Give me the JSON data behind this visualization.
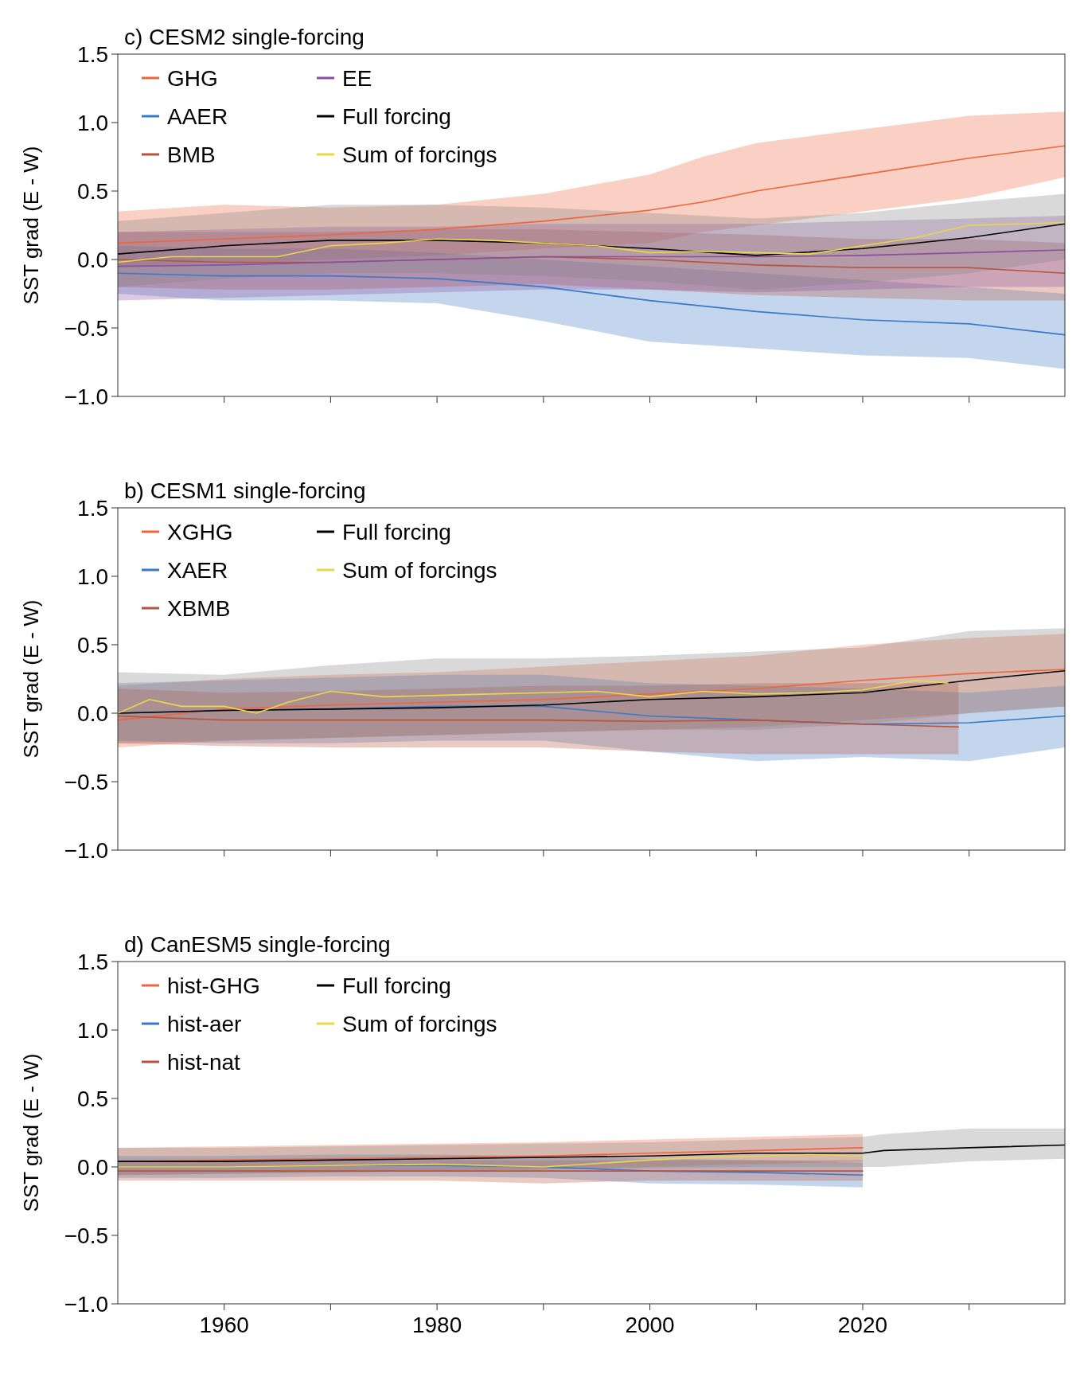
{
  "chart_data": [
    {
      "type": "line",
      "title": "c) CESM2 single-forcing",
      "ylabel": "SST grad (E - W)",
      "xlim": [
        1950,
        2039
      ],
      "ylim": [
        -1,
        1.5
      ],
      "xticks": [
        1960,
        {
          "value": 1970,
          "label": null
        },
        1980,
        {
          "value": 1990,
          "label": null
        },
        2000,
        {
          "value": 2010,
          "label": null
        },
        2020,
        {
          "value": 2030,
          "label": null
        }
      ],
      "yticks": [
        {
          "value": -1,
          "label": "−1.0"
        },
        {
          "value": -0.5,
          "label": "−0.5"
        },
        {
          "value": 0,
          "label": "0.0"
        },
        {
          "value": 0.5,
          "label": "0.5"
        },
        {
          "value": 1,
          "label": "1.0"
        },
        {
          "value": 1.5,
          "label": "1.5"
        }
      ],
      "tick_labels": "y",
      "legend": "top left",
      "series": [
        {
          "name": "GHG",
          "color": "#f0643c",
          "x": [
            1950,
            1960,
            1970,
            1980,
            1990,
            2000,
            2005,
            2010,
            2020,
            2030,
            2039
          ],
          "values": [
            0.12,
            0.15,
            0.18,
            0.22,
            0.28,
            0.36,
            0.42,
            0.5,
            0.62,
            0.74,
            0.83
          ],
          "lower": [
            -0.05,
            -0.02,
            0.0,
            0.03,
            0.08,
            0.12,
            0.2,
            0.25,
            0.35,
            0.45,
            0.6
          ],
          "upper": [
            0.35,
            0.4,
            0.38,
            0.4,
            0.48,
            0.62,
            0.75,
            0.85,
            0.95,
            1.05,
            1.08
          ]
        },
        {
          "name": "AAER",
          "color": "#3a78c8",
          "x": [
            1950,
            1960,
            1970,
            1980,
            1990,
            2000,
            2010,
            2020,
            2030,
            2039
          ],
          "values": [
            -0.1,
            -0.12,
            -0.12,
            -0.14,
            -0.2,
            -0.3,
            -0.38,
            -0.44,
            -0.47,
            -0.55
          ],
          "lower": [
            -0.25,
            -0.3,
            -0.3,
            -0.32,
            -0.45,
            -0.6,
            -0.65,
            -0.7,
            -0.72,
            -0.8
          ],
          "upper": [
            0.1,
            0.08,
            0.08,
            0.05,
            0.0,
            -0.05,
            -0.1,
            -0.15,
            -0.2,
            -0.25
          ]
        },
        {
          "name": "BMB",
          "color": "#b5533c",
          "x": [
            1950,
            1960,
            1970,
            1980,
            1990,
            2000,
            2010,
            2020,
            2030,
            2039
          ],
          "values": [
            0.0,
            -0.02,
            -0.02,
            0.0,
            0.02,
            0.0,
            -0.04,
            -0.06,
            -0.06,
            -0.1
          ],
          "lower": [
            -0.2,
            -0.22,
            -0.22,
            -0.2,
            -0.18,
            -0.22,
            -0.26,
            -0.28,
            -0.3,
            -0.3
          ],
          "upper": [
            0.2,
            0.2,
            0.2,
            0.22,
            0.22,
            0.2,
            0.18,
            0.15,
            0.15,
            0.12
          ]
        },
        {
          "name": "EE",
          "color": "#8a4fa0",
          "x": [
            1950,
            1960,
            1970,
            1980,
            1990,
            2000,
            2010,
            2020,
            2030,
            2039
          ],
          "values": [
            -0.05,
            -0.04,
            -0.02,
            0.0,
            0.02,
            0.02,
            0.02,
            0.03,
            0.05,
            0.07
          ],
          "lower": [
            -0.3,
            -0.28,
            -0.26,
            -0.24,
            -0.22,
            -0.22,
            -0.24,
            -0.22,
            -0.2,
            -0.2
          ],
          "upper": [
            0.2,
            0.22,
            0.24,
            0.24,
            0.26,
            0.26,
            0.26,
            0.28,
            0.3,
            0.32
          ]
        },
        {
          "name": "Full forcing",
          "color": "#000000",
          "x": [
            1950,
            1960,
            1970,
            1980,
            1990,
            2000,
            2010,
            2020,
            2030,
            2039
          ],
          "values": [
            0.04,
            0.1,
            0.14,
            0.14,
            0.12,
            0.08,
            0.03,
            0.08,
            0.16,
            0.26
          ],
          "lower": [
            -0.2,
            -0.14,
            -0.1,
            -0.1,
            -0.12,
            -0.16,
            -0.22,
            -0.17,
            -0.1,
            0.0
          ],
          "upper": [
            0.28,
            0.34,
            0.4,
            0.4,
            0.38,
            0.34,
            0.3,
            0.34,
            0.42,
            0.48
          ]
        },
        {
          "name": "Sum of forcings",
          "color": "#e8d84a",
          "x": [
            1950,
            1955,
            1960,
            1965,
            1970,
            1975,
            1980,
            1985,
            1990,
            1995,
            2000,
            2005,
            2010,
            2015,
            2020,
            2025,
            2030,
            2035,
            2039
          ],
          "values": [
            -0.02,
            0.02,
            0.02,
            0.02,
            0.1,
            0.12,
            0.15,
            0.14,
            0.12,
            0.1,
            0.05,
            0.06,
            0.05,
            0.04,
            0.1,
            0.16,
            0.25,
            0.26,
            0.27
          ]
        }
      ]
    },
    {
      "type": "line",
      "title": "b) CESM1 single-forcing",
      "ylabel": "SST grad (E - W)",
      "xlim": [
        1950,
        2039
      ],
      "ylim": [
        -1,
        1.5
      ],
      "xticks": [
        1960,
        {
          "value": 1970,
          "label": null
        },
        1980,
        {
          "value": 1990,
          "label": null
        },
        2000,
        {
          "value": 2010,
          "label": null
        },
        2020,
        {
          "value": 2030,
          "label": null
        }
      ],
      "yticks": [
        {
          "value": -1,
          "label": "−1.0"
        },
        {
          "value": -0.5,
          "label": "−0.5"
        },
        {
          "value": 0,
          "label": "0.0"
        },
        {
          "value": 0.5,
          "label": "0.5"
        },
        {
          "value": 1,
          "label": "1.0"
        },
        {
          "value": 1.5,
          "label": "1.5"
        }
      ],
      "tick_labels": "y",
      "legend": "top left",
      "series": [
        {
          "name": "XGHG",
          "color": "#f0643c",
          "x": [
            1950,
            1960,
            1970,
            1980,
            1990,
            2000,
            2010,
            2020,
            2030,
            2039
          ],
          "values": [
            -0.05,
            0.03,
            0.06,
            0.08,
            0.1,
            0.14,
            0.18,
            0.24,
            0.29,
            0.32
          ],
          "lower": [
            -0.25,
            -0.2,
            -0.18,
            -0.16,
            -0.14,
            -0.12,
            -0.1,
            -0.05,
            0.0,
            0.05
          ],
          "upper": [
            0.2,
            0.25,
            0.28,
            0.3,
            0.34,
            0.38,
            0.42,
            0.5,
            0.55,
            0.58
          ]
        },
        {
          "name": "XAER",
          "color": "#3a78c8",
          "x": [
            1950,
            1960,
            1970,
            1980,
            1990,
            2000,
            2010,
            2020,
            2030,
            2039
          ],
          "values": [
            0.0,
            0.02,
            0.03,
            0.05,
            0.05,
            -0.02,
            -0.05,
            -0.08,
            -0.07,
            -0.02
          ],
          "lower": [
            -0.2,
            -0.22,
            -0.22,
            -0.2,
            -0.2,
            -0.28,
            -0.35,
            -0.32,
            -0.35,
            -0.25
          ],
          "upper": [
            0.22,
            0.24,
            0.26,
            0.28,
            0.28,
            0.22,
            0.2,
            0.18,
            0.15,
            0.2
          ]
        },
        {
          "name": "XBMB",
          "color": "#b5533c",
          "x": [
            1950,
            1960,
            1970,
            1980,
            1990,
            2000,
            2010,
            2020,
            2029
          ],
          "values": [
            -0.02,
            -0.05,
            -0.05,
            -0.05,
            -0.05,
            -0.06,
            -0.05,
            -0.08,
            -0.1
          ],
          "lower": [
            -0.22,
            -0.24,
            -0.25,
            -0.25,
            -0.25,
            -0.28,
            -0.3,
            -0.3,
            -0.3
          ],
          "upper": [
            0.18,
            0.15,
            0.16,
            0.18,
            0.2,
            0.2,
            0.22,
            0.22,
            0.22
          ]
        },
        {
          "name": "Full forcing",
          "color": "#000000",
          "x": [
            1950,
            1960,
            1970,
            1980,
            1990,
            2000,
            2010,
            2020,
            2030,
            2039
          ],
          "values": [
            0.0,
            0.02,
            0.03,
            0.04,
            0.06,
            0.1,
            0.12,
            0.15,
            0.24,
            0.31
          ],
          "lower": [
            -0.22,
            -0.2,
            -0.18,
            -0.16,
            -0.14,
            -0.12,
            -0.12,
            -0.08,
            0.0,
            0.05
          ],
          "upper": [
            0.3,
            0.28,
            0.35,
            0.4,
            0.4,
            0.42,
            0.45,
            0.48,
            0.6,
            0.62
          ]
        },
        {
          "name": "Sum of forcings",
          "color": "#e8d84a",
          "x": [
            1950,
            1953,
            1956,
            1960,
            1963,
            1966,
            1970,
            1975,
            1980,
            1985,
            1990,
            1995,
            2000,
            2005,
            2010,
            2015,
            2020,
            2025,
            2028
          ],
          "values": [
            0.0,
            0.1,
            0.05,
            0.05,
            0.0,
            0.08,
            0.16,
            0.12,
            0.13,
            0.14,
            0.15,
            0.16,
            0.12,
            0.16,
            0.14,
            0.15,
            0.17,
            0.24,
            0.22
          ]
        }
      ]
    },
    {
      "type": "line",
      "title": "d) CanESM5 single-forcing",
      "ylabel": "SST grad (E - W)",
      "xlim": [
        1950,
        2039
      ],
      "ylim": [
        -1,
        1.5
      ],
      "xticks": [
        1960,
        {
          "value": 1970,
          "label": null
        },
        1980,
        {
          "value": 1990,
          "label": null
        },
        2000,
        {
          "value": 2010,
          "label": null
        },
        2020,
        {
          "value": 2030,
          "label": null
        }
      ],
      "yticks": [
        {
          "value": -1,
          "label": "−1.0"
        },
        {
          "value": -0.5,
          "label": "−0.5"
        },
        {
          "value": 0,
          "label": "0.0"
        },
        {
          "value": 0.5,
          "label": "0.5"
        },
        {
          "value": 1,
          "label": "1.0"
        },
        {
          "value": 1.5,
          "label": "1.5"
        }
      ],
      "legend": "top left",
      "series": [
        {
          "name": "hist-GHG",
          "color": "#f0643c",
          "x": [
            1950,
            1960,
            1970,
            1980,
            1990,
            2000,
            2010,
            2020
          ],
          "values": [
            0.04,
            0.05,
            0.06,
            0.07,
            0.08,
            0.1,
            0.12,
            0.14
          ],
          "lower": [
            -0.06,
            -0.05,
            -0.04,
            -0.03,
            -0.02,
            0.0,
            0.02,
            0.04
          ],
          "upper": [
            0.14,
            0.15,
            0.16,
            0.17,
            0.18,
            0.2,
            0.22,
            0.24
          ]
        },
        {
          "name": "hist-aer",
          "color": "#3a78c8",
          "x": [
            1950,
            1960,
            1970,
            1980,
            1990,
            2000,
            2010,
            2020
          ],
          "values": [
            0.0,
            0.0,
            0.01,
            0.01,
            0.0,
            -0.03,
            -0.04,
            -0.06
          ],
          "lower": [
            -0.08,
            -0.08,
            -0.07,
            -0.07,
            -0.08,
            -0.12,
            -0.13,
            -0.15
          ],
          "upper": [
            0.08,
            0.08,
            0.09,
            0.09,
            0.08,
            0.06,
            0.05,
            0.03
          ]
        },
        {
          "name": "hist-nat",
          "color": "#b5533c",
          "x": [
            1950,
            1960,
            1970,
            1980,
            1990,
            2000,
            2010,
            2020
          ],
          "values": [
            -0.03,
            -0.03,
            -0.03,
            -0.03,
            -0.03,
            -0.03,
            -0.03,
            -0.03
          ],
          "lower": [
            -0.1,
            -0.1,
            -0.1,
            -0.1,
            -0.12,
            -0.1,
            -0.1,
            -0.1
          ],
          "upper": [
            0.05,
            0.05,
            0.05,
            0.05,
            0.05,
            0.05,
            0.05,
            0.05
          ]
        },
        {
          "name": "Full forcing",
          "color": "#000000",
          "x": [
            1950,
            1960,
            1970,
            1980,
            1990,
            2000,
            2010,
            2020,
            2022,
            2030,
            2039
          ],
          "values": [
            0.04,
            0.04,
            0.05,
            0.06,
            0.07,
            0.08,
            0.1,
            0.1,
            0.12,
            0.14,
            0.16
          ],
          "lower": [
            -0.06,
            -0.05,
            -0.04,
            -0.03,
            -0.02,
            -0.01,
            0.0,
            0.0,
            0.0,
            0.04,
            0.06
          ],
          "upper": [
            0.14,
            0.14,
            0.15,
            0.16,
            0.17,
            0.18,
            0.2,
            0.22,
            0.24,
            0.28,
            0.28
          ]
        },
        {
          "name": "Sum of forcings",
          "color": "#e8d84a",
          "x": [
            1950,
            1960,
            1970,
            1980,
            1990,
            2000,
            2005,
            2010,
            2015,
            2020
          ],
          "values": [
            0.0,
            0.0,
            0.01,
            0.02,
            0.0,
            0.05,
            0.07,
            0.08,
            0.09,
            0.08
          ]
        }
      ]
    }
  ]
}
